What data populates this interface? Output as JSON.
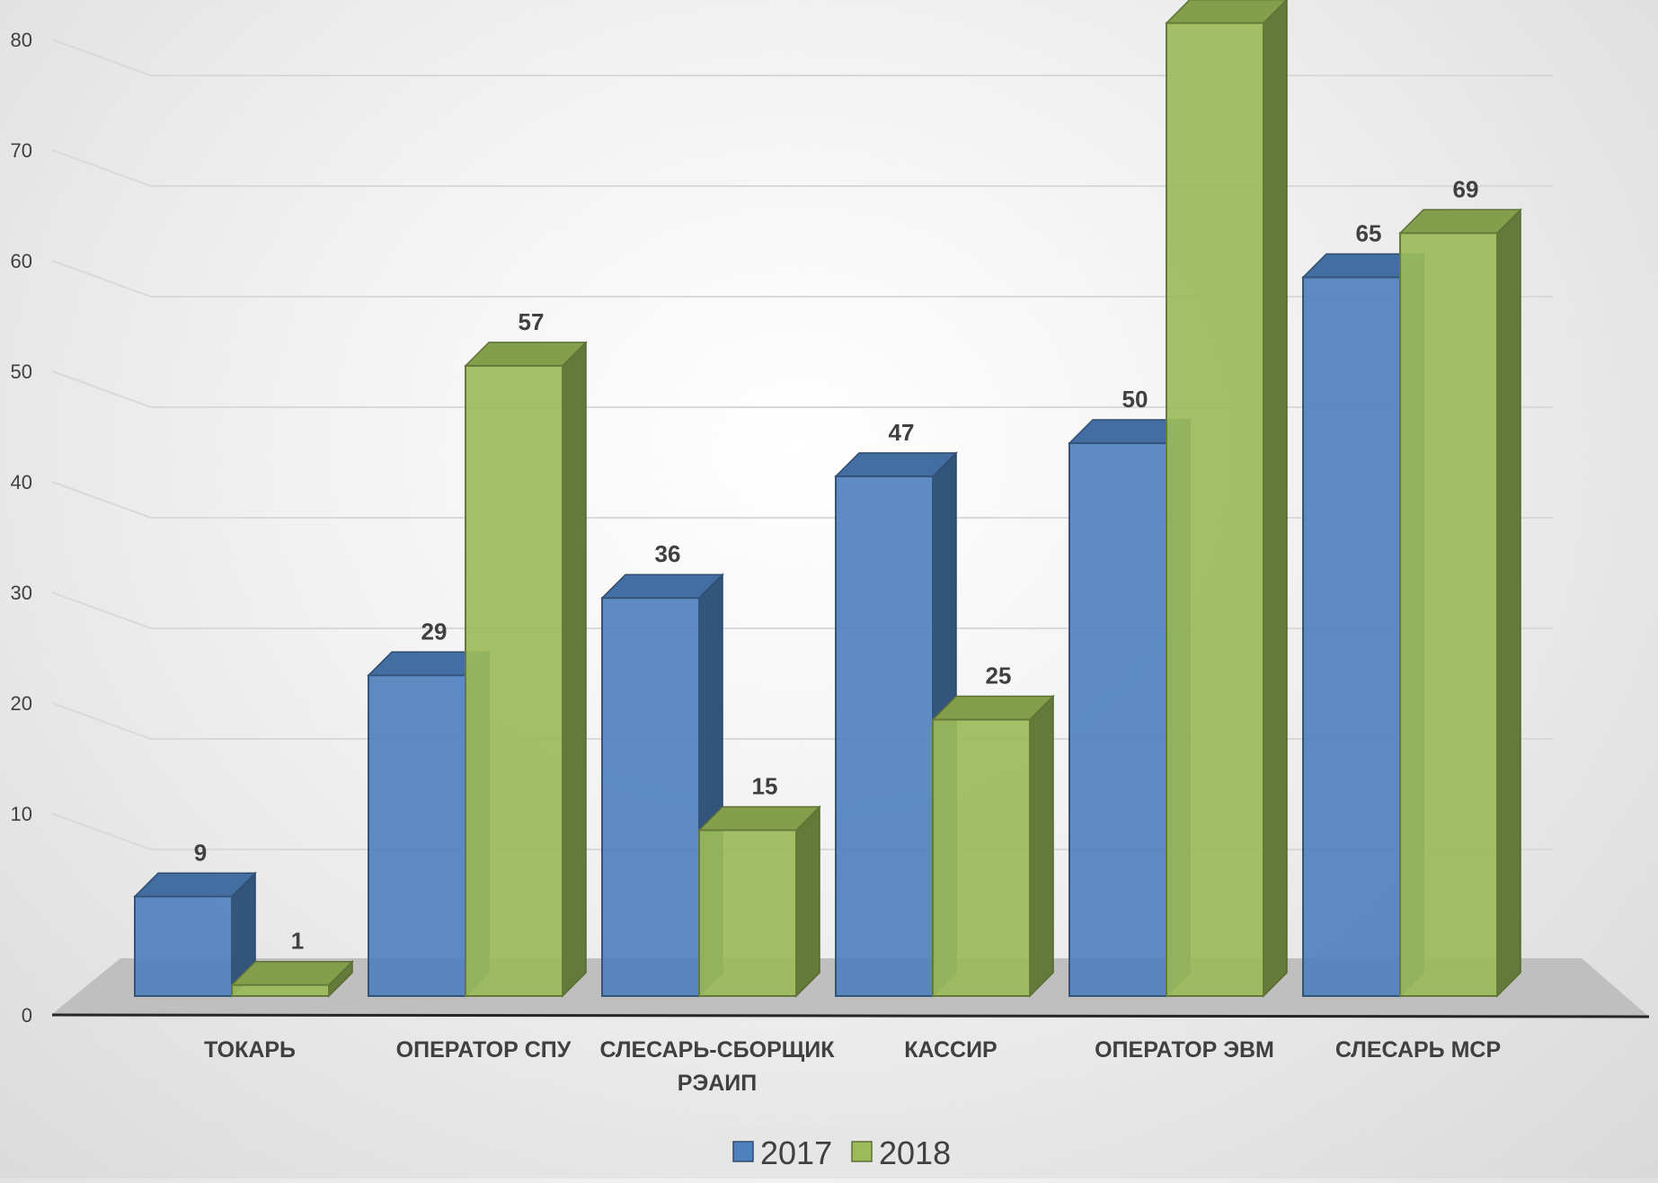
{
  "chart_data": {
    "type": "bar",
    "style": "3d-clustered-column",
    "categories": [
      [
        "ТОКАРЬ"
      ],
      [
        "ОПЕРАТОР СПУ"
      ],
      [
        "СЛЕСАРЬ-СБОРЩИК",
        "РЭАИП"
      ],
      [
        "КАССИР"
      ],
      [
        "ОПЕРАТОР ЭВМ"
      ],
      [
        "СЛЕСАРЬ МСР"
      ]
    ],
    "series": [
      {
        "name": "2017",
        "values": [
          9,
          29,
          36,
          47,
          50,
          65
        ],
        "color": "#4f81bd"
      },
      {
        "name": "2018",
        "values": [
          1,
          57,
          15,
          25,
          88,
          69
        ],
        "color": "#9bbb59"
      }
    ],
    "ylim": [
      0,
      90
    ],
    "yticks": [
      0,
      10,
      20,
      30,
      40,
      50,
      60,
      70,
      80,
      90
    ],
    "grid": true,
    "data_labels": true,
    "legend_position": "bottom"
  }
}
